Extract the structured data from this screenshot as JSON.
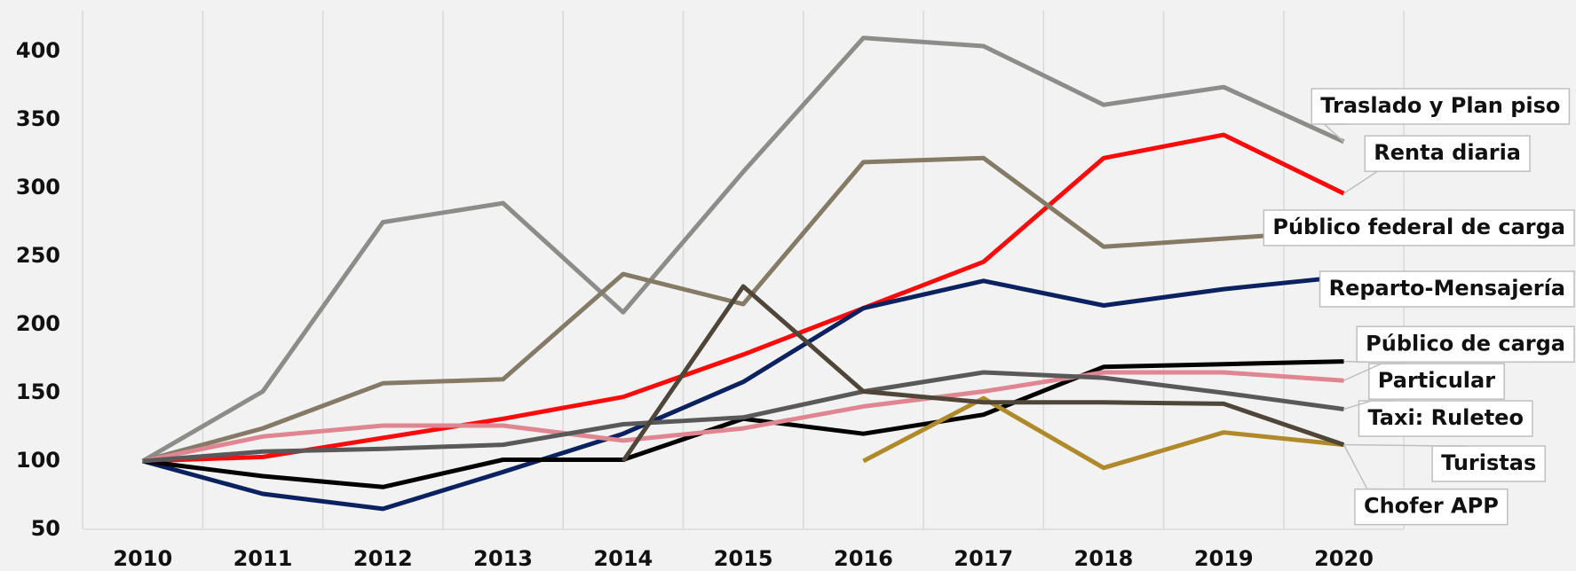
{
  "chart_data": {
    "type": "line",
    "categories": [
      "2010",
      "2011",
      "2012",
      "2013",
      "2014",
      "2015",
      "2016",
      "2017",
      "2018",
      "2019",
      "2020"
    ],
    "ylim": [
      50,
      430
    ],
    "yticks": [
      50,
      100,
      150,
      200,
      250,
      300,
      350,
      400
    ],
    "grid": true,
    "series": [
      {
        "name": "Traslado y Plan piso",
        "color": "#8c8c8a",
        "values": [
          100,
          151,
          275,
          289,
          209,
          312,
          410,
          404,
          361,
          374,
          334
        ]
      },
      {
        "name": "Renta diaria",
        "color": "#ff0a0a",
        "values": [
          100,
          103,
          117,
          131,
          147,
          178,
          212,
          246,
          322,
          339,
          296
        ]
      },
      {
        "name": "Público federal de carga",
        "color": "#857a66",
        "values": [
          100,
          124,
          157,
          160,
          237,
          215,
          319,
          322,
          257,
          263,
          269
        ]
      },
      {
        "name": "Reparto-Mensajería",
        "color": "#0c2260",
        "values": [
          100,
          76,
          65,
          92,
          120,
          158,
          212,
          232,
          214,
          226,
          235
        ]
      },
      {
        "name": "Público de carga",
        "color": "#000000",
        "values": [
          100,
          89,
          81,
          101,
          101,
          131,
          120,
          134,
          169,
          171,
          173
        ]
      },
      {
        "name": "Particular",
        "color": "#e08592",
        "values": [
          100,
          118,
          126,
          126,
          115,
          124,
          140,
          151,
          165,
          165,
          159
        ]
      },
      {
        "name": "Taxi: Ruleteo",
        "color": "#595959",
        "values": [
          100,
          107,
          109,
          112,
          127,
          132,
          151,
          165,
          161,
          150,
          138
        ]
      },
      {
        "name": "Turistas",
        "color": "#b08a2a",
        "values": [
          null,
          null,
          null,
          null,
          null,
          null,
          100,
          146,
          95,
          121,
          112
        ]
      },
      {
        "name": "Chofer APP",
        "color": "#4f4639",
        "values": [
          null,
          null,
          null,
          null,
          100,
          228,
          151,
          143,
          143,
          142,
          112
        ]
      }
    ]
  }
}
